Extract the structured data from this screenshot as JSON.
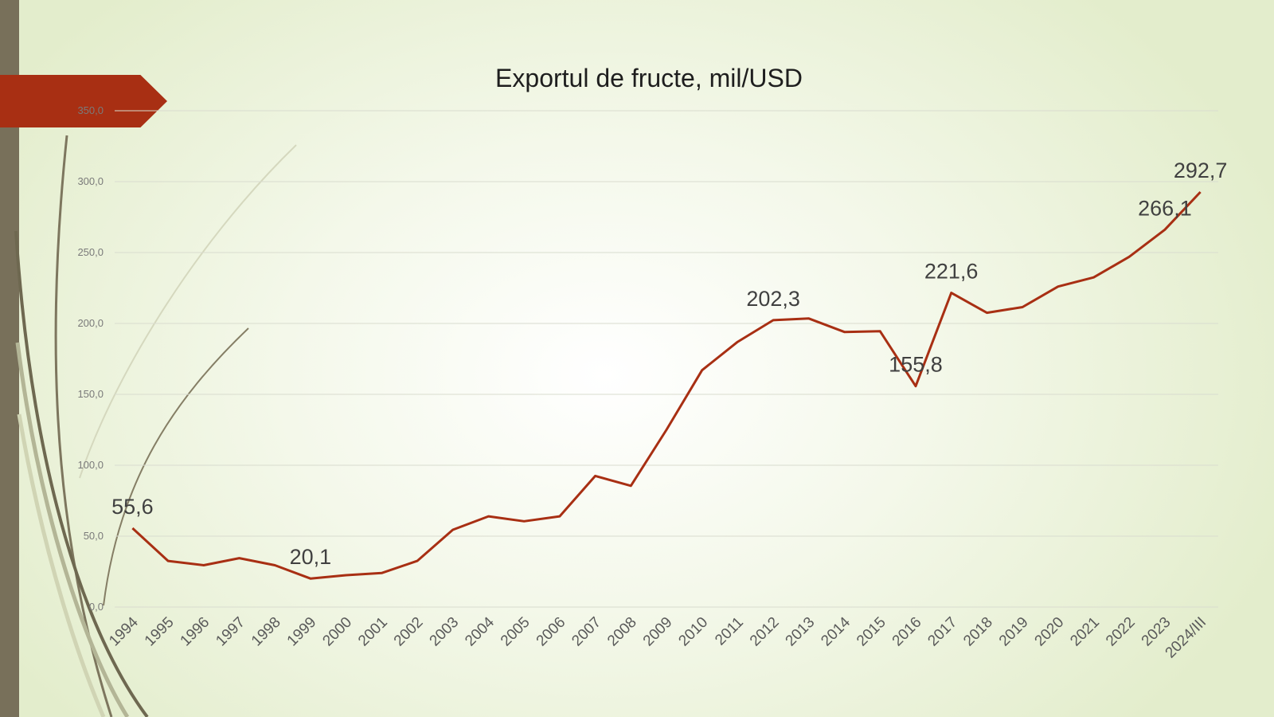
{
  "chart_data": {
    "type": "line",
    "title": "Exportul de fructe, mil/USD",
    "xlabel": "",
    "ylabel": "",
    "ylim": [
      0,
      350
    ],
    "y_ticks": [
      "0,0",
      "50,0",
      "100,0",
      "150,0",
      "200,0",
      "250,0",
      "300,0",
      "350,0"
    ],
    "grid": true,
    "legend": "none",
    "line_color": "#a82f13",
    "categories": [
      "1994",
      "1995",
      "1996",
      "1997",
      "1998",
      "1999",
      "2000",
      "2001",
      "2002",
      "2003",
      "2004",
      "2005",
      "2006",
      "2007",
      "2008",
      "2009",
      "2010",
      "2011",
      "2012",
      "2013",
      "2014",
      "2015",
      "2016",
      "2017",
      "2018",
      "2019",
      "2020",
      "2021",
      "2022",
      "2023",
      "2024/III"
    ],
    "series": [
      {
        "values": [
          55.6,
          32.5,
          29.5,
          34.5,
          29.5,
          20.1,
          22.5,
          24.0,
          32.5,
          54.5,
          64.0,
          60.5,
          64.0,
          92.5,
          85.5,
          125.0,
          167.0,
          187.0,
          202.3,
          203.5,
          194.0,
          194.5,
          155.8,
          221.6,
          207.5,
          211.5,
          226.0,
          232.5,
          247.0,
          266.1,
          292.7
        ]
      }
    ],
    "data_labels": [
      {
        "index": 0,
        "text": "55,6"
      },
      {
        "index": 5,
        "text": "20,1"
      },
      {
        "index": 18,
        "text": "202,3"
      },
      {
        "index": 22,
        "text": "155,8"
      },
      {
        "index": 23,
        "text": "221,6"
      },
      {
        "index": 29,
        "text": "266,1"
      },
      {
        "index": 30,
        "text": "292,7"
      }
    ]
  }
}
